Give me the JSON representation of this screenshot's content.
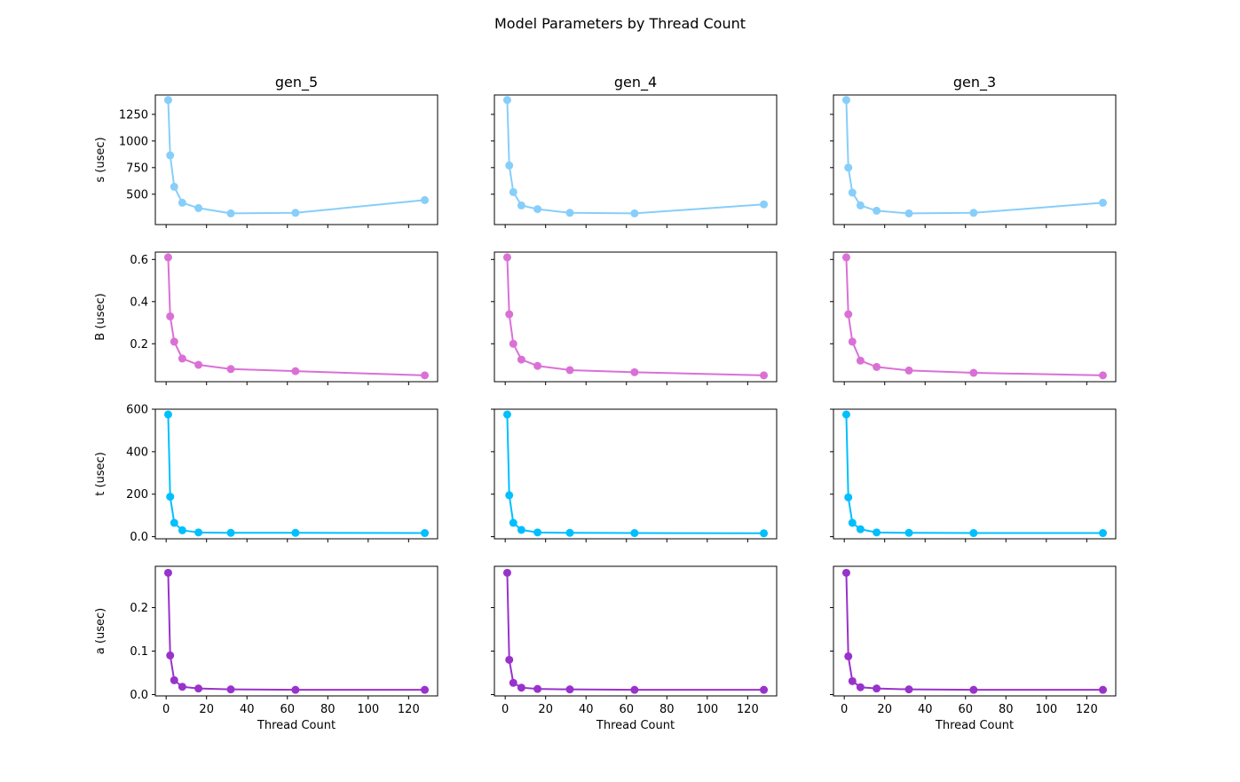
{
  "figure": {
    "title": "Model Parameters by Thread Count",
    "x_label": "Thread Count"
  },
  "chart_data": {
    "type": "line",
    "layout": "4 rows x 3 columns, shared x and y axes per row",
    "columns": [
      "gen_5",
      "gen_4",
      "gen_3"
    ],
    "x": [
      1,
      2,
      4,
      8,
      16,
      32,
      64,
      128
    ],
    "xlim": [
      -5.35,
      134.35
    ],
    "xticks": [
      0,
      20,
      40,
      60,
      80,
      100,
      120
    ],
    "xlabel": "Thread Count",
    "grid": false,
    "markers": "circle",
    "rows": [
      {
        "ylabel": "s (usec)",
        "color": "#87cefa",
        "ylim": [
          215,
          1432
        ],
        "yticks": [
          500,
          750,
          1000,
          1250
        ],
        "series": {
          "gen_5": [
            1385,
            865,
            570,
            420,
            370,
            320,
            325,
            445
          ],
          "gen_4": [
            1385,
            770,
            520,
            395,
            360,
            325,
            320,
            405
          ],
          "gen_3": [
            1385,
            750,
            515,
            395,
            345,
            320,
            325,
            420
          ]
        }
      },
      {
        "ylabel": "B (usec)",
        "color": "#da70d6",
        "ylim": [
          0.02,
          0.635
        ],
        "yticks": [
          0.2,
          0.4,
          0.6
        ],
        "series": {
          "gen_5": [
            0.61,
            0.33,
            0.21,
            0.13,
            0.1,
            0.08,
            0.07,
            0.05
          ],
          "gen_4": [
            0.61,
            0.34,
            0.2,
            0.125,
            0.095,
            0.075,
            0.065,
            0.05
          ],
          "gen_3": [
            0.61,
            0.34,
            0.21,
            0.12,
            0.09,
            0.073,
            0.062,
            0.05
          ]
        }
      },
      {
        "ylabel": "t (usec)",
        "color": "#00bfff",
        "ylim": [
          -10,
          600
        ],
        "yticks": [
          0,
          200,
          400,
          600
        ],
        "series": {
          "gen_5": [
            575,
            188,
            65,
            30,
            20,
            18,
            18,
            17
          ],
          "gen_4": [
            575,
            195,
            65,
            32,
            20,
            18,
            17,
            16
          ],
          "gen_3": [
            575,
            185,
            65,
            35,
            20,
            18,
            17,
            17
          ]
        }
      },
      {
        "ylabel": "a (usec)",
        "color": "#9932cc",
        "ylim": [
          -0.003,
          0.295
        ],
        "yticks": [
          0.0,
          0.1,
          0.2
        ],
        "series": {
          "gen_5": [
            0.28,
            0.09,
            0.033,
            0.018,
            0.014,
            0.012,
            0.011,
            0.011
          ],
          "gen_4": [
            0.28,
            0.08,
            0.027,
            0.016,
            0.013,
            0.012,
            0.011,
            0.011
          ],
          "gen_3": [
            0.28,
            0.088,
            0.031,
            0.017,
            0.014,
            0.012,
            0.011,
            0.011
          ]
        }
      }
    ]
  }
}
